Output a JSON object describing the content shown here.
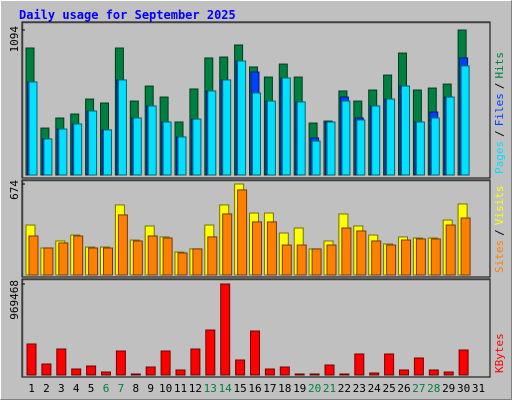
{
  "separator": "/",
  "chart_data": [
    {
      "type": "bar",
      "title": "Daily usage for September 2025",
      "ylim": [
        0,
        1094
      ],
      "yticks": [
        1094
      ],
      "series": [
        {
          "name": "Hits",
          "color": "#008040",
          "values": [
            958,
            354,
            430,
            460,
            573,
            543,
            958,
            558,
            671,
            588,
            400,
            649,
            883,
            890,
            981,
            815,
            739,
            837,
            739,
            392,
            407,
            634,
            558,
            641,
            754,
            920,
            641,
            656,
            686,
            1094,
            0
          ]
        },
        {
          "name": "Files",
          "color": "#0040ff",
          "values": [
            702,
            272,
            347,
            385,
            483,
            340,
            717,
            430,
            521,
            400,
            287,
            422,
            634,
            717,
            860,
            777,
            558,
            732,
            551,
            279,
            400,
            588,
            430,
            521,
            573,
            671,
            400,
            475,
            588,
            883,
            0
          ]
        },
        {
          "name": "Pages",
          "color": "#00e0ff",
          "values": [
            702,
            272,
            347,
            385,
            483,
            340,
            717,
            430,
            521,
            400,
            287,
            422,
            634,
            717,
            860,
            619,
            558,
            732,
            551,
            256,
            400,
            558,
            415,
            521,
            573,
            671,
            400,
            430,
            588,
            823,
            0
          ]
        }
      ]
    },
    {
      "type": "bar",
      "ylim": [
        0,
        674
      ],
      "yticks": [
        674
      ],
      "series": [
        {
          "name": "Visits",
          "color": "#ffff00",
          "values": [
            370,
            200,
            252,
            296,
            207,
            207,
            519,
            259,
            363,
            282,
            170,
            193,
            370,
            519,
            674,
            459,
            459,
            311,
            348,
            193,
            252,
            452,
            363,
            296,
            230,
            282,
            274,
            274,
            407,
            526,
            0
          ]
        },
        {
          "name": "Sites",
          "color": "#ff8000",
          "values": [
            289,
            200,
            237,
            289,
            200,
            200,
            445,
            252,
            289,
            274,
            163,
            193,
            282,
            452,
            630,
            393,
            393,
            222,
            222,
            193,
            222,
            348,
            326,
            252,
            222,
            259,
            267,
            267,
            370,
            422,
            0
          ]
        }
      ]
    },
    {
      "type": "bar",
      "ylim": [
        0,
        969468
      ],
      "yticks": [
        969468
      ],
      "categories": [
        "1",
        "2",
        "3",
        "4",
        "5",
        "6",
        "7",
        "8",
        "9",
        "10",
        "11",
        "12",
        "13",
        "14",
        "15",
        "16",
        "17",
        "18",
        "19",
        "20",
        "21",
        "22",
        "23",
        "24",
        "25",
        "26",
        "27",
        "28",
        "29",
        "30",
        "31"
      ],
      "label_color": "#000000",
      "weekend_color": "#008040",
      "weekend": [
        "6",
        "7",
        "13",
        "14",
        "20",
        "21",
        "27",
        "28"
      ],
      "series": [
        {
          "name": "KBytes",
          "color": "#ff0000",
          "values": [
            330243,
            117183,
            276978,
            63918,
            95877,
            31959,
            255672,
            10653,
            85224,
            255672,
            53265,
            276978,
            479385,
            969468,
            159795,
            468732,
            63918,
            85224,
            10653,
            10653,
            106530,
            10653,
            223713,
            21306,
            223713,
            53265,
            181101,
            53265,
            31959,
            266325,
            0
          ]
        }
      ]
    }
  ]
}
